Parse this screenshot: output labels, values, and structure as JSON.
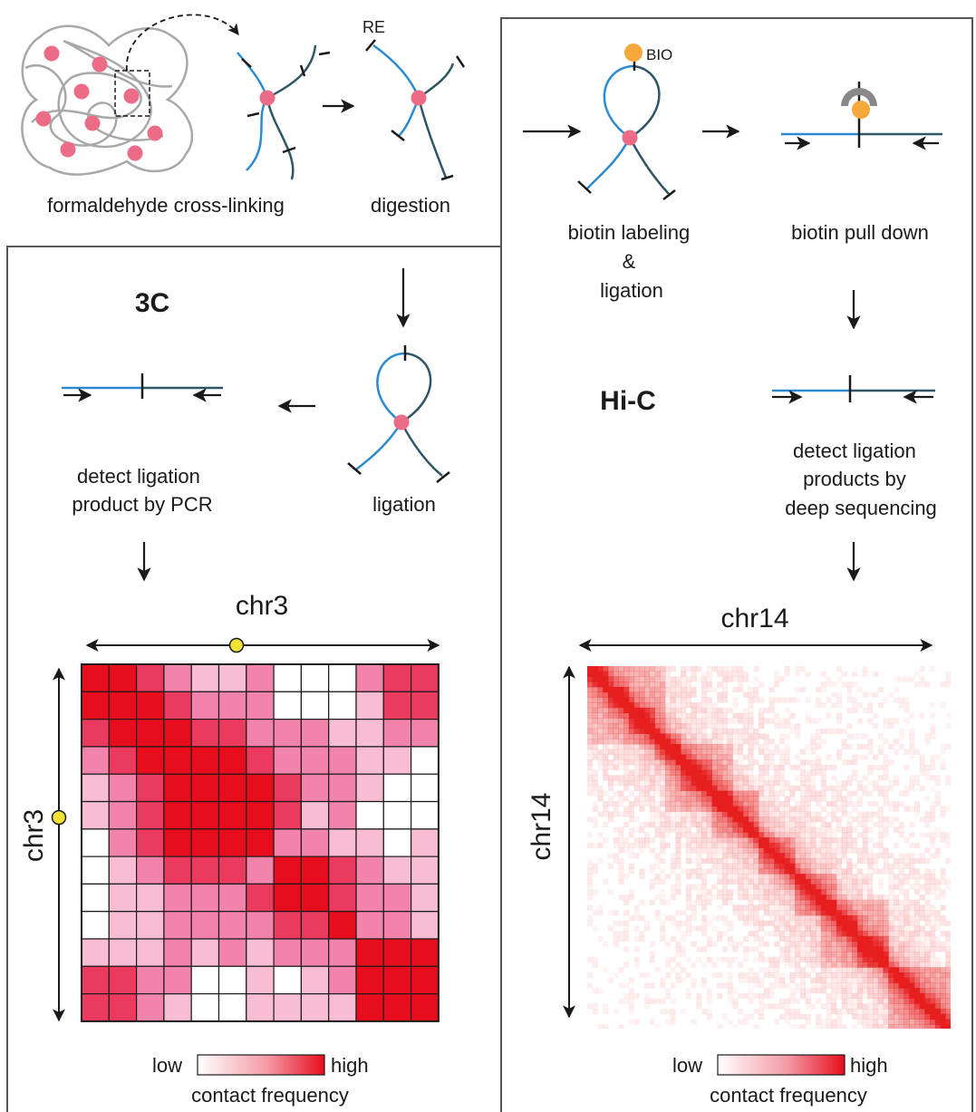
{
  "steps": {
    "crosslink": "formaldehyde cross-linking",
    "digestion": "digestion",
    "re_label": "RE",
    "bio_label": "BIO",
    "biotin_labeling": [
      "biotin labeling",
      "&",
      "ligation"
    ],
    "biotin_pulldown": "biotin pull down",
    "ligation": "ligation"
  },
  "three_c": {
    "title": "3C",
    "detect": [
      "detect ligation",
      "product by PCR"
    ],
    "axis_top": "chr3",
    "axis_left": "chr3",
    "legend_low": "low",
    "legend_high": "high",
    "legend_title": "contact frequency",
    "matrix": [
      [
        4,
        4,
        3,
        2,
        1,
        1,
        2,
        0,
        0,
        0,
        2,
        3,
        3
      ],
      [
        4,
        4,
        4,
        3,
        2,
        2,
        2,
        0,
        0,
        0,
        1,
        3,
        3
      ],
      [
        3,
        4,
        4,
        4,
        3,
        3,
        2,
        2,
        2,
        1,
        1,
        2,
        2
      ],
      [
        2,
        3,
        4,
        4,
        4,
        4,
        3,
        2,
        2,
        2,
        1,
        1,
        0
      ],
      [
        1,
        2,
        3,
        4,
        4,
        4,
        4,
        3,
        2,
        2,
        1,
        0,
        0
      ],
      [
        1,
        2,
        3,
        4,
        4,
        4,
        4,
        3,
        1,
        2,
        0,
        0,
        0
      ],
      [
        0,
        2,
        3,
        4,
        4,
        4,
        4,
        2,
        2,
        1,
        1,
        0,
        1
      ],
      [
        0,
        1,
        2,
        3,
        3,
        3,
        2,
        4,
        4,
        3,
        2,
        1,
        1
      ],
      [
        0,
        1,
        1,
        2,
        2,
        2,
        3,
        4,
        4,
        3,
        2,
        2,
        1
      ],
      [
        0,
        1,
        1,
        2,
        2,
        2,
        2,
        3,
        3,
        4,
        2,
        2,
        1
      ],
      [
        1,
        1,
        1,
        2,
        1,
        2,
        1,
        2,
        2,
        2,
        4,
        4,
        4
      ],
      [
        3,
        3,
        2,
        2,
        0,
        0,
        1,
        0,
        1,
        2,
        4,
        4,
        4
      ],
      [
        3,
        3,
        2,
        1,
        0,
        0,
        1,
        1,
        1,
        1,
        4,
        4,
        4
      ]
    ]
  },
  "hic": {
    "title": "Hi-C",
    "detect": [
      "detect ligation",
      "products by",
      "deep sequencing"
    ],
    "axis_top": "chr14",
    "axis_left": "chr14",
    "legend_low": "low",
    "legend_high": "high",
    "legend_title": "contact frequency"
  },
  "colors": {
    "node": "#ec6b86",
    "strand_a": "#2b8bd1",
    "strand_b": "#2f5567",
    "biotin": "#f6a83a",
    "marker": "#f3e236",
    "matrix_levels": [
      "#ffffff",
      "#f8bcd3",
      "#f283ab",
      "#ec3a5f",
      "#e80d1c"
    ],
    "heat": "#e61e1e",
    "frame": "#555555"
  }
}
